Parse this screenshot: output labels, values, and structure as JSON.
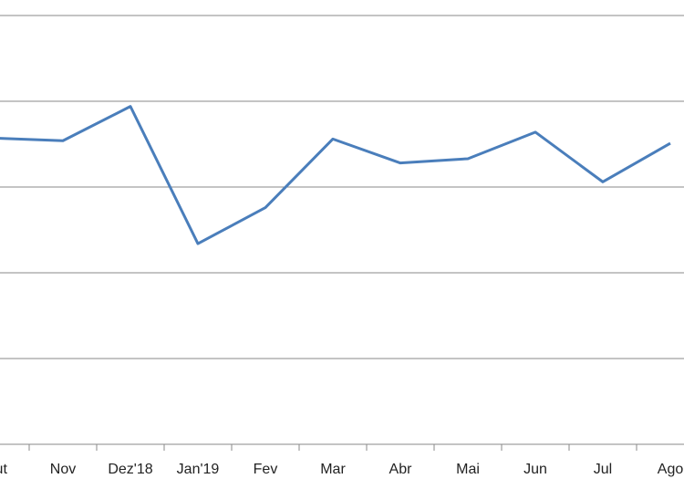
{
  "chart_data": {
    "type": "line",
    "categories": [
      "Out",
      "Nov",
      "Dez'18",
      "Jan'19",
      "Fev",
      "Mar",
      "Abr",
      "Mai",
      "Jun",
      "Jul",
      "Ago"
    ],
    "series": [
      {
        "color": "#4a7ebb",
        "values": [
          3.57,
          3.54,
          3.94,
          2.34,
          2.76,
          3.56,
          3.28,
          3.33,
          3.64,
          3.06,
          3.51
        ]
      }
    ],
    "ylim": [
      0,
      5
    ],
    "yticks": [
      0,
      1,
      2,
      3,
      4,
      5
    ],
    "grid": true
  }
}
